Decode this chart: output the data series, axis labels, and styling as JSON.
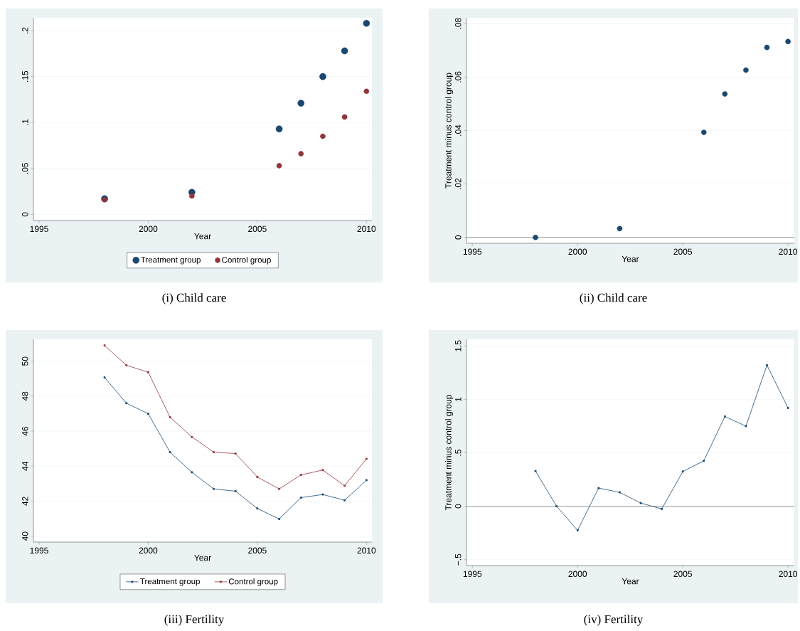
{
  "chart_data": [
    {
      "type": "scatter",
      "title": "(i) Child care",
      "xlabel": "Year",
      "x": [
        1998,
        2002,
        2006,
        2007,
        2008,
        2009,
        2010
      ],
      "series": [
        {
          "name": "Treatment group",
          "color": "#1a476f",
          "values": [
            0.017,
            0.024,
            0.093,
            0.121,
            0.15,
            0.178,
            0.208
          ]
        },
        {
          "name": "Control group",
          "color": "#90353b",
          "values": [
            0.016,
            0.02,
            0.053,
            0.066,
            0.085,
            0.106,
            0.134
          ]
        }
      ],
      "xlim": [
        1994.74,
        2010.25
      ],
      "ylim": [
        -0.0067,
        0.214
      ],
      "xticks": [
        1995,
        2000,
        2005,
        2010
      ],
      "yticks": [
        0,
        {
          "value": 0.05,
          "label": ".05"
        },
        {
          "value": 0.1,
          "label": ".1"
        },
        {
          "value": 0.15,
          "label": ".15"
        },
        {
          "value": 0.2,
          "label": ".2"
        }
      ],
      "grid": "y",
      "legend": "bottom",
      "marker": "circle"
    },
    {
      "type": "scatter",
      "title": "(ii) Child care",
      "xlabel": "Year",
      "ylabel": "Treatment minus control group",
      "x": [
        1998,
        2002,
        2006,
        2007,
        2008,
        2009,
        2010
      ],
      "series": [
        {
          "color": "#1a476f",
          "values": [
            0.0,
            0.0033,
            0.0393,
            0.0537,
            0.0626,
            0.0711,
            0.0733
          ]
        }
      ],
      "xlim": [
        1994.72,
        2010.3
      ],
      "ylim": [
        -0.0022,
        0.0822
      ],
      "xticks": [
        1995,
        2000,
        2005,
        2010
      ],
      "yticks": [
        0,
        {
          "value": 0.02,
          "label": ".02"
        },
        {
          "value": 0.04,
          "label": ".04"
        },
        {
          "value": 0.06,
          "label": ".06"
        },
        {
          "value": 0.08,
          "label": ".08"
        }
      ],
      "ref_lines": [
        {
          "axis": "y",
          "value": 0,
          "color": "#000000"
        }
      ],
      "grid": "y",
      "legend": false,
      "marker": "circle"
    },
    {
      "type": "line",
      "title": "(iii) Fertility",
      "xlabel": "Year",
      "x": [
        1998,
        1999,
        2000,
        2001,
        2002,
        2003,
        2004,
        2005,
        2006,
        2007,
        2008,
        2009,
        2010
      ],
      "series": [
        {
          "name": "Treatment group",
          "color": "#1a476f",
          "values": [
            49.07,
            47.6,
            47.0,
            44.8,
            43.65,
            42.7,
            42.57,
            41.58,
            40.98,
            42.2,
            42.38,
            42.05,
            43.2
          ]
        },
        {
          "name": "Control group",
          "color": "#90353b",
          "values": [
            50.9,
            49.77,
            49.37,
            46.8,
            45.67,
            44.8,
            44.72,
            43.38,
            42.7,
            43.5,
            43.78,
            42.88,
            44.42
          ]
        }
      ],
      "xlim": [
        1994.74,
        2010.25
      ],
      "ylim": [
        39.66,
        51.25
      ],
      "xticks": [
        1995,
        2000,
        2005,
        2010
      ],
      "yticks": [
        40,
        42,
        44,
        46,
        48,
        50
      ],
      "grid": "y",
      "legend": "bottom",
      "marker": "square"
    },
    {
      "type": "line",
      "title": "(iv) Fertility",
      "xlabel": "Year",
      "ylabel": "Treatment minus control group",
      "x": [
        1998,
        1999,
        2000,
        2001,
        2002,
        2003,
        2004,
        2005,
        2006,
        2007,
        2008,
        2009,
        2010
      ],
      "series": [
        {
          "color": "#1a476f",
          "values": [
            0.33,
            0.0,
            -0.225,
            0.17,
            0.13,
            0.03,
            -0.025,
            0.325,
            0.425,
            0.84,
            0.75,
            1.32,
            0.92
          ]
        }
      ],
      "xlim": [
        1994.72,
        2010.3
      ],
      "ylim": [
        -0.555,
        1.562
      ],
      "xticks": [
        1995,
        2000,
        2005,
        2010
      ],
      "yticks": [
        {
          "value": -0.5,
          "label": "−.5"
        },
        0,
        {
          "value": 0.5,
          "label": ".5"
        },
        1,
        {
          "value": 1.5,
          "label": "1.5"
        }
      ],
      "ref_lines": [
        {
          "axis": "y",
          "value": 0,
          "color": "#000000"
        }
      ],
      "grid": "y",
      "legend": false,
      "marker": "square"
    }
  ]
}
